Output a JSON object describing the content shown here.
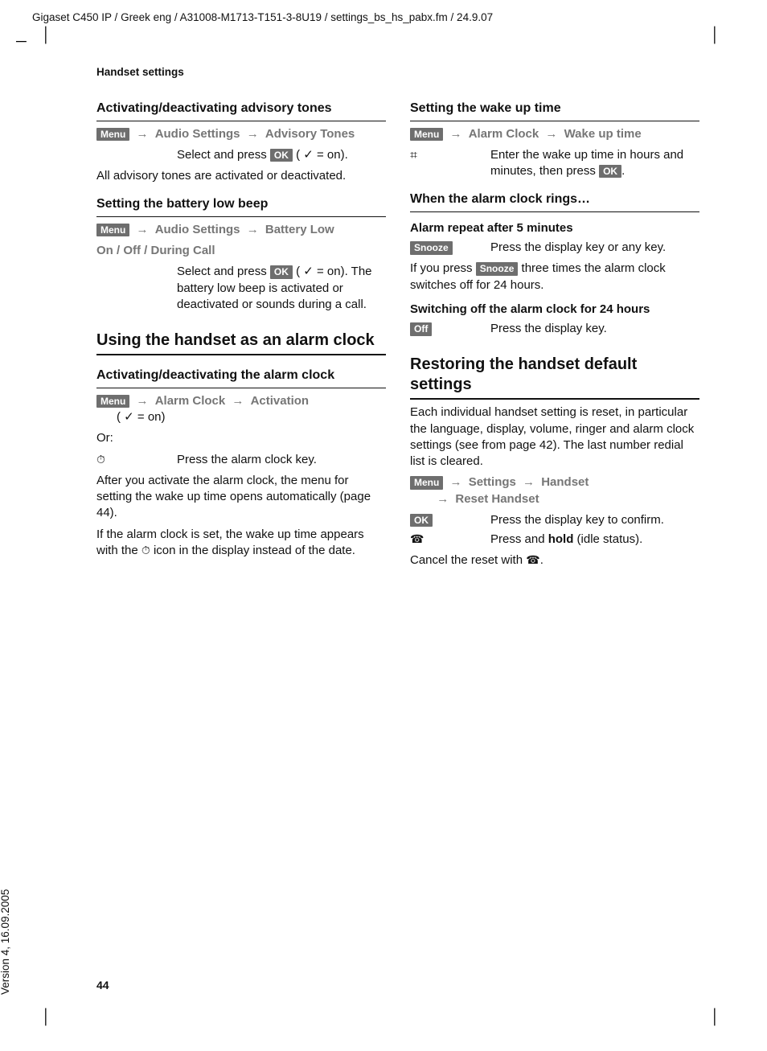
{
  "header": "Gigaset C450 IP / Greek eng / A31008-M1713-T151-3-8U19 / settings_bs_hs_pabx.fm / 24.9.07",
  "section_label": "Handset settings",
  "page_number": "44",
  "version": "Version 4, 16.09.2005",
  "keys": {
    "menu": "Menu",
    "ok": "OK",
    "snooze": "Snooze",
    "off": "Off"
  },
  "nav": {
    "audio_settings": "Audio Settings",
    "advisory_tones": "Advisory Tones",
    "battery_low": "Battery Low",
    "alarm_clock": "Alarm Clock",
    "activation": "Activation",
    "wake_up_time": "Wake up time",
    "settings": "Settings",
    "handset": "Handset",
    "reset_handset": "Reset Handset"
  },
  "left": {
    "h_advisory": "Activating/deactivating advisory tones",
    "advisory_select": "Select and press ",
    "advisory_on": " ( ✓ = on).",
    "advisory_body": "All advisory tones are activated or deactivated.",
    "h_battery": "Setting the battery low beep",
    "battery_opts": "On / Off / During Call",
    "battery_body": "The battery low beep is activated or deactivated or sounds during a call.",
    "h_alarm_main": "Using the handset as an alarm clock",
    "h_alarm_act": "Activating/deactivating the alarm clock",
    "alarm_on": "( ✓ = on)",
    "or": "Or:",
    "press_alarm_key": "Press the alarm clock key.",
    "after_activate": "After you activate the alarm clock, the menu for setting the wake up time opens automatically (page 44).",
    "if_set1": "If the alarm clock is set, the wake up time appears with the ",
    "if_set2": " icon in the display instead of the date."
  },
  "right": {
    "h_wake": "Setting the wake up time",
    "enter_wake": "Enter the wake up time in hours and minutes, then press ",
    "h_rings": "When the alarm clock rings…",
    "h_repeat": "Alarm repeat after 5 minutes",
    "snooze_body": "Press the display key or any key.",
    "snooze_three1": "If you press ",
    "snooze_three2": " three times the alarm clock switches off for 24 hours.",
    "h_switchoff": "Switching off the alarm clock for 24 hours",
    "off_body": "Press the display key.",
    "h_restore": "Restoring the handset default settings",
    "restore_body": "Each individual handset setting is reset, in particular the language, display, volume, ringer and alarm clock settings (see from page 42). The last number redial list is cleared.",
    "ok_body": "Press the display key to confirm.",
    "hold_body1": "Press and ",
    "hold_bold": "hold",
    "hold_body2": " (idle status).",
    "cancel": "Cancel the reset with "
  }
}
